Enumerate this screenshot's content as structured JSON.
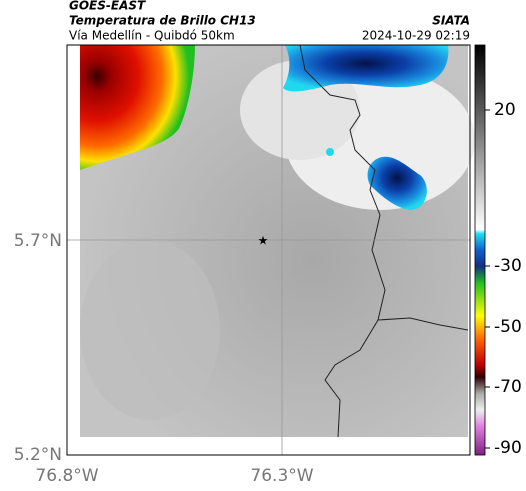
{
  "header": {
    "satellite": "GOES-EAST",
    "title": "Temperatura de Brillo CH13",
    "source": "SIATA",
    "route": "Vía Medellín - Quibdó 50km",
    "timestamp": "2024-10-29 02:19"
  },
  "map": {
    "lat_labels": [
      "5.7°N",
      "5.2°N"
    ],
    "lon_labels": [
      "76.8°W",
      "76.3°W"
    ]
  },
  "colorbar": {
    "ticks": [
      20,
      -30,
      -50,
      -70,
      -90
    ]
  }
}
